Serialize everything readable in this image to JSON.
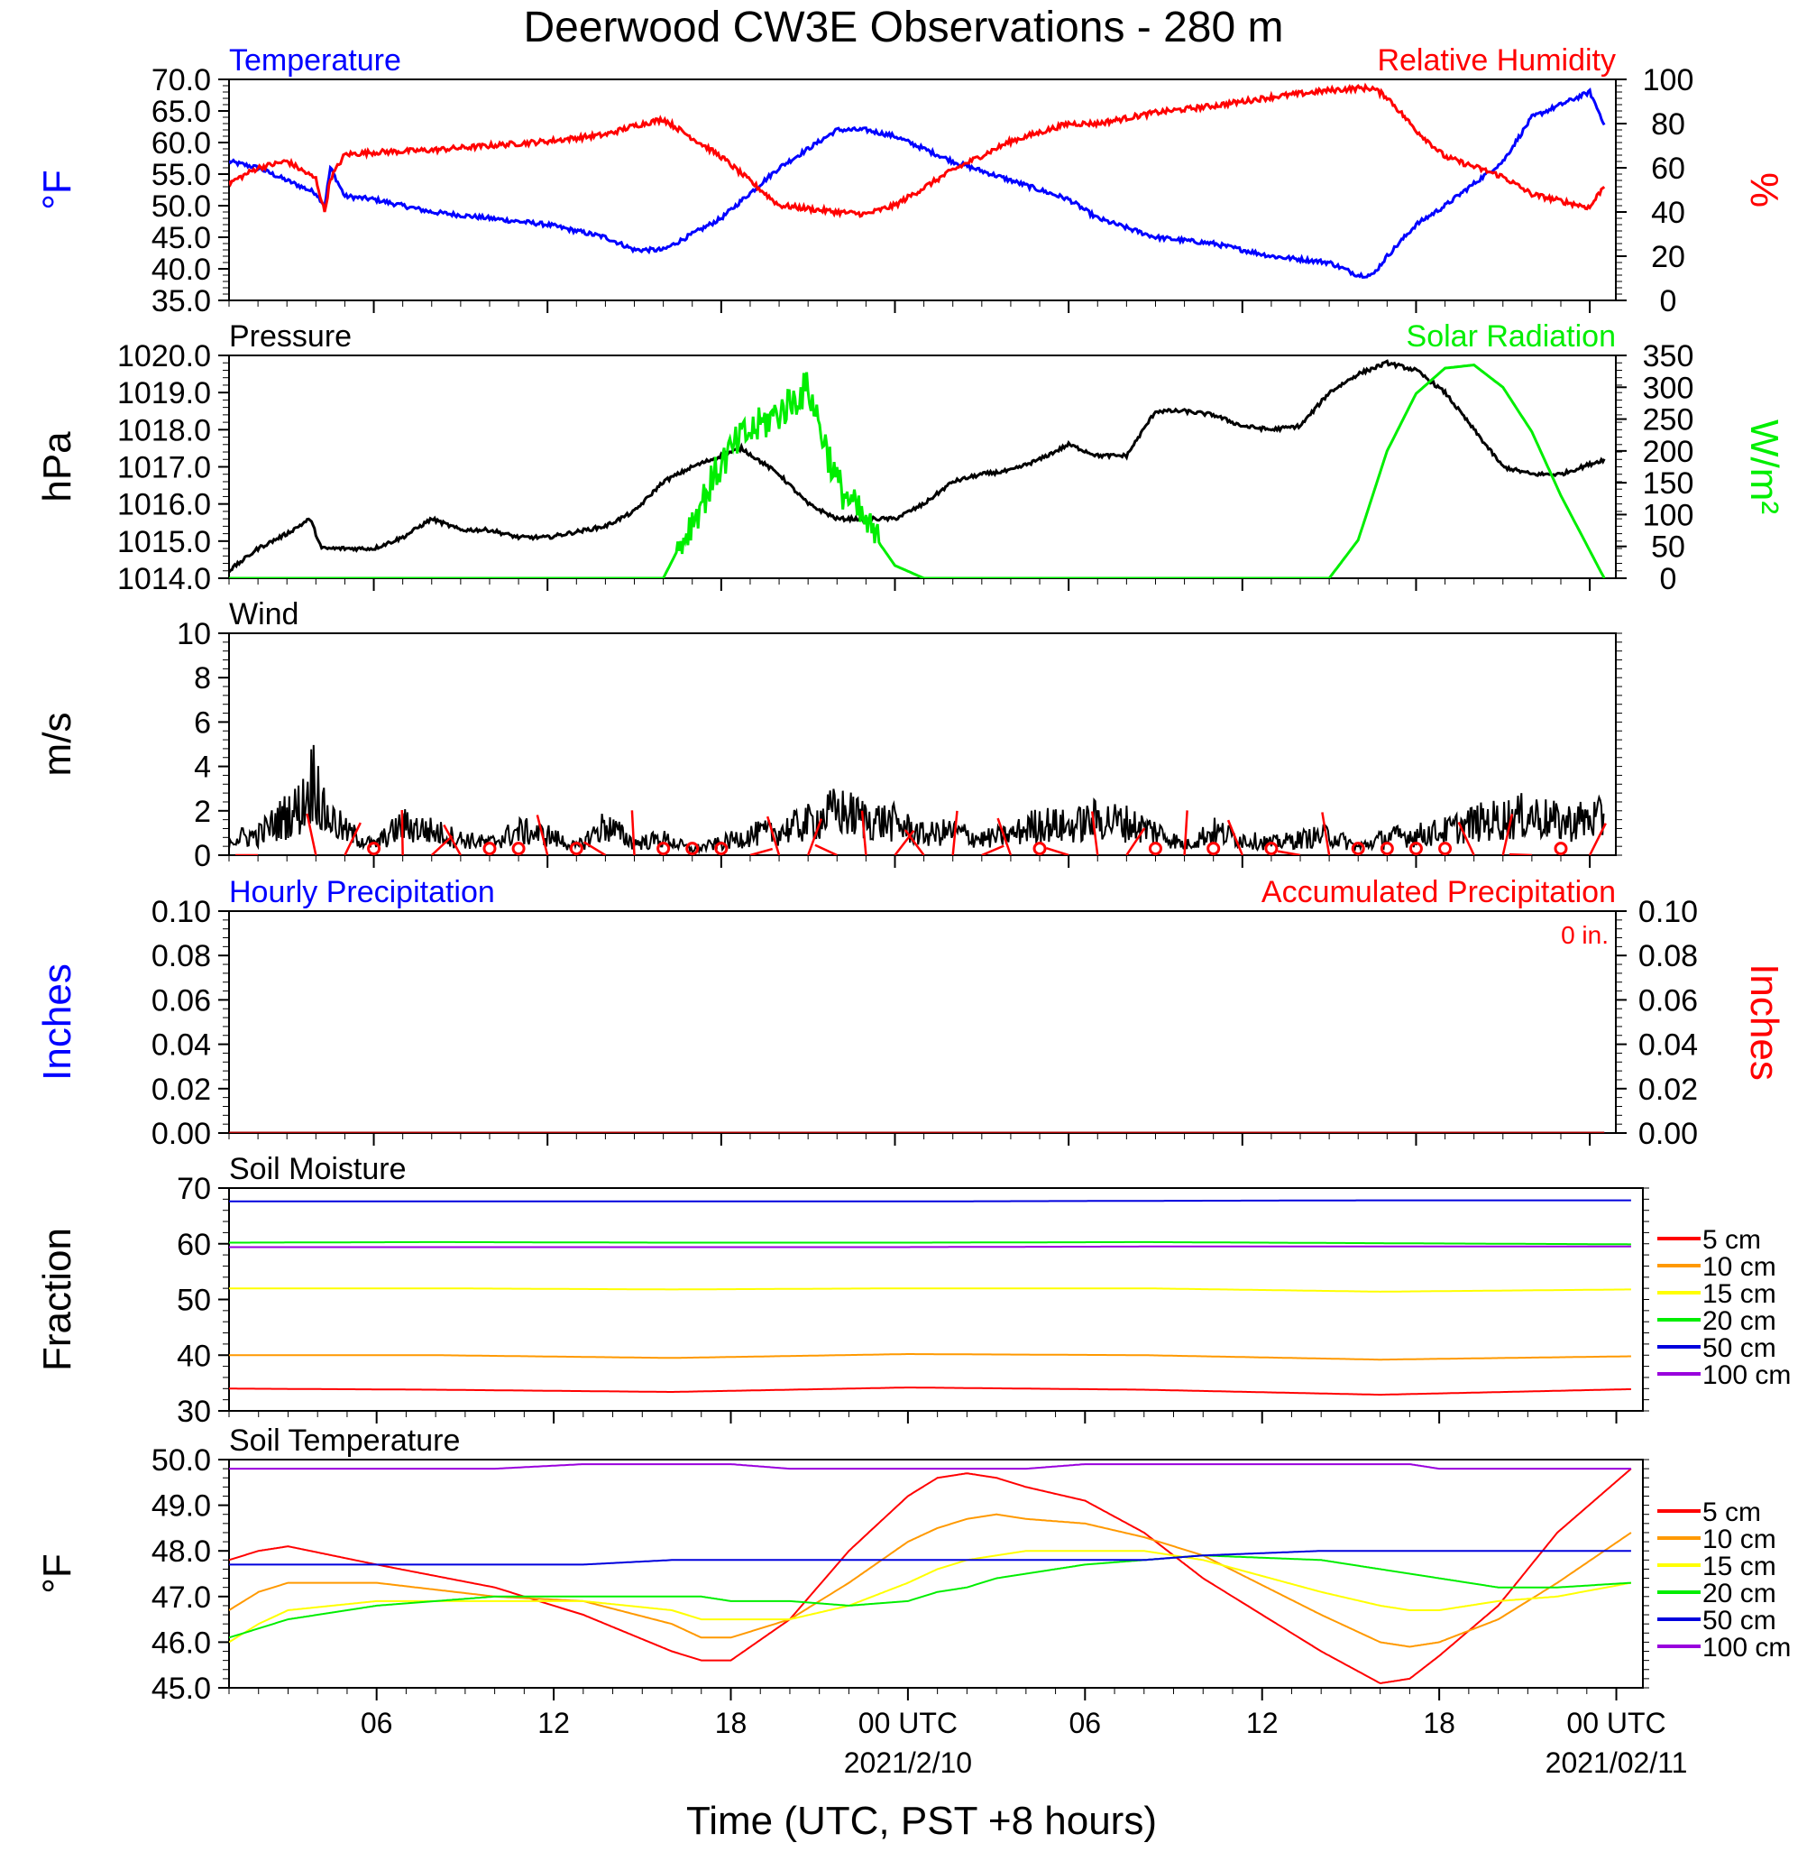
{
  "page": {
    "title": "Deerwood CW3E Observations - 280 m",
    "xlabel": "Time (UTC, PST +8 hours)",
    "x_ticks": [
      "06",
      "12",
      "18",
      "00 UTC",
      "06",
      "12",
      "18",
      "00 UTC"
    ],
    "date_labels": [
      "2021/2/10",
      "2021/02/11"
    ]
  },
  "colors": {
    "temperature": "#0000ff",
    "humidity": "#ff0000",
    "pressure": "#000000",
    "solar": "#00ee00",
    "wind": "#000000",
    "wind_barb": "#ff0000",
    "soil_5cm": "#ff0000",
    "soil_10cm": "#ff9900",
    "soil_15cm": "#ffff00",
    "soil_20cm": "#00ee00",
    "soil_50cm": "#0000dd",
    "soil_100cm": "#9900dd"
  },
  "chart_data": [
    {
      "id": "temp_rh",
      "type": "line",
      "title_left": "Temperature",
      "title_right": "Relative Humidity",
      "ylabel_left": "°F",
      "ylabel_right": "%",
      "ylim_left": [
        35,
        70
      ],
      "ylim_right": [
        0,
        100
      ],
      "yticks_left": [
        "35.0",
        "40.0",
        "45.0",
        "50.0",
        "55.0",
        "60.0",
        "65.0",
        "70.0"
      ],
      "yticks_right": [
        "0",
        "20",
        "40",
        "60",
        "80",
        "100"
      ],
      "x_hours": [
        1,
        2,
        3,
        4,
        4.3,
        4.5,
        5,
        6,
        8,
        10,
        12,
        14,
        15,
        16,
        18,
        20,
        22,
        23,
        24,
        26,
        28,
        30,
        31,
        33,
        35,
        37,
        39,
        40,
        40.5,
        41,
        42,
        43,
        45,
        46,
        47,
        48,
        48.5
      ],
      "series": [
        {
          "name": "Temperature",
          "axis": "left",
          "values": [
            57,
            56,
            54,
            52,
            50,
            56,
            51.5,
            51,
            49,
            48,
            47,
            45,
            43,
            43,
            48,
            56,
            62,
            62,
            61,
            57,
            54,
            51,
            48,
            45,
            44,
            42,
            41,
            39,
            39,
            42,
            47,
            50,
            57,
            64,
            66,
            68,
            63
          ]
        },
        {
          "name": "Relative Humidity",
          "axis": "right",
          "values": [
            53,
            60,
            63,
            55,
            40,
            55,
            66,
            67,
            68,
            70,
            72,
            75,
            79,
            82,
            65,
            43,
            40,
            39,
            43,
            59,
            72,
            80,
            80,
            85,
            88,
            92,
            95,
            96,
            96,
            92,
            77,
            65,
            56,
            48,
            45,
            42,
            52
          ]
        }
      ]
    },
    {
      "id": "pressure_solar",
      "type": "line",
      "title_left": "Pressure",
      "title_right": "Solar Radiation",
      "ylabel_left": "hPa",
      "ylabel_right": "W/m²",
      "ylim_left": [
        1014,
        1020
      ],
      "ylim_right": [
        0,
        350
      ],
      "yticks_left": [
        "1014.0",
        "1015.0",
        "1016.0",
        "1017.0",
        "1018.0",
        "1019.0",
        "1020.0"
      ],
      "yticks_right": [
        "0",
        "50",
        "100",
        "150",
        "200",
        "250",
        "300",
        "350"
      ],
      "x_hours": [
        1,
        2,
        3,
        3.8,
        4.2,
        5,
        6,
        7,
        8,
        9,
        10,
        11,
        12,
        14,
        15,
        16,
        17,
        18,
        18.7,
        20,
        21,
        22,
        24,
        25,
        26,
        27,
        28,
        29,
        30,
        31,
        32,
        33,
        34,
        35,
        36,
        37,
        38,
        39,
        40,
        41,
        42,
        43,
        44,
        45,
        46,
        47,
        48.5
      ],
      "series": [
        {
          "name": "Pressure",
          "axis": "left",
          "values": [
            1014.2,
            1014.8,
            1015.2,
            1015.6,
            1014.8,
            1014.8,
            1014.8,
            1015.1,
            1015.6,
            1015.3,
            1015.3,
            1015.1,
            1015.1,
            1015.4,
            1015.8,
            1016.6,
            1017.0,
            1017.3,
            1017.5,
            1016.8,
            1016.0,
            1015.6,
            1015.6,
            1016.0,
            1016.6,
            1016.8,
            1016.9,
            1017.2,
            1017.6,
            1017.3,
            1017.3,
            1018.5,
            1018.5,
            1018.4,
            1018.1,
            1018.0,
            1018.1,
            1019.0,
            1019.5,
            1019.8,
            1019.6,
            1019.0,
            1018.0,
            1017.0,
            1016.8,
            1016.8,
            1017.2
          ]
        },
        {
          "name": "Solar Radiation",
          "axis": "right",
          "values": [
            0,
            0,
            0,
            0,
            0,
            0,
            0,
            0,
            0,
            0,
            0,
            0,
            0,
            0,
            0,
            0,
            90,
            180,
            220,
            260,
            300,
            150,
            20,
            0,
            0,
            0,
            0,
            0,
            0,
            0,
            0,
            0,
            0,
            0,
            0,
            0,
            0,
            0,
            60,
            200,
            290,
            330,
            335,
            300,
            230,
            130,
            0
          ]
        }
      ]
    },
    {
      "id": "wind",
      "type": "line",
      "title_left": "Wind",
      "ylabel_left": "m/s",
      "ylim_left": [
        0,
        10
      ],
      "yticks_left": [
        "0",
        "2",
        "4",
        "6",
        "8",
        "10"
      ],
      "x_hours": [
        1,
        2,
        3,
        3.5,
        4,
        4.2,
        5,
        6,
        7,
        8,
        9,
        10,
        11,
        12,
        13,
        14,
        15,
        16,
        17,
        18,
        19,
        20,
        21,
        22,
        23,
        24,
        25,
        26,
        27,
        28,
        29,
        30,
        31,
        32,
        33,
        34,
        35,
        36,
        37,
        38,
        39,
        40,
        41,
        42,
        43,
        44,
        45,
        46,
        47,
        48,
        48.5
      ],
      "series": [
        {
          "name": "Wind speed",
          "axis": "left",
          "values": [
            0.8,
            1.0,
            2.0,
            2.4,
            4.1,
            2.2,
            1.2,
            0.5,
            1.5,
            1.2,
            0.8,
            0.6,
            1.2,
            1.0,
            0.4,
            1.5,
            0.6,
            0.8,
            0.3,
            0.6,
            1.0,
            1.2,
            1.6,
            2.2,
            1.8,
            1.6,
            1.0,
            1.2,
            0.8,
            1.0,
            1.6,
            1.4,
            1.8,
            1.6,
            1.2,
            0.5,
            1.2,
            0.8,
            0.6,
            0.8,
            1.0,
            0.4,
            0.9,
            1.0,
            1.2,
            1.6,
            1.8,
            2.0,
            1.6,
            1.8,
            1.8
          ]
        }
      ],
      "barb_hours": [
        2,
        4,
        5,
        6,
        7,
        8,
        9,
        10,
        11,
        12,
        13,
        14,
        15,
        16,
        17,
        18,
        19,
        20,
        21,
        22,
        23,
        24,
        25,
        26,
        27,
        28,
        29,
        30,
        31,
        32,
        33,
        34,
        35,
        36,
        37,
        38,
        39,
        40,
        41,
        42,
        43,
        44,
        45,
        46,
        47,
        48
      ],
      "calm_hours": [
        6,
        10,
        11,
        13,
        16,
        17,
        18,
        29,
        33,
        35,
        37,
        40,
        41,
        42,
        43,
        47
      ]
    },
    {
      "id": "precip",
      "type": "line",
      "title_left": "Hourly Precipitation",
      "title_right": "Accumulated Precipitation",
      "annotation": "0 in.",
      "ylabel_left": "Inches",
      "ylabel_right": "Inches",
      "ylim_left": [
        0,
        0.1
      ],
      "ylim_right": [
        0,
        0.1
      ],
      "yticks_left": [
        "0.00",
        "0.02",
        "0.04",
        "0.06",
        "0.08",
        "0.10"
      ],
      "yticks_right": [
        "0.00",
        "0.02",
        "0.04",
        "0.06",
        "0.08",
        "0.10"
      ],
      "x_hours": [
        1,
        48.5
      ],
      "series": [
        {
          "name": "Hourly Precipitation",
          "axis": "left",
          "values": [
            0,
            0
          ]
        },
        {
          "name": "Accumulated Precipitation",
          "axis": "right",
          "values": [
            0,
            0
          ]
        }
      ]
    },
    {
      "id": "soil_moisture",
      "type": "line",
      "title_left": "Soil Moisture",
      "ylabel_left": "Fraction",
      "ylim_left": [
        30,
        70
      ],
      "yticks_left": [
        "30",
        "40",
        "50",
        "60",
        "70"
      ],
      "x_hours": [
        1,
        8,
        16,
        24,
        32,
        40,
        48.5
      ],
      "series": [
        {
          "name": "5 cm",
          "values": [
            34.0,
            33.8,
            33.4,
            34.2,
            33.8,
            32.9,
            33.9
          ]
        },
        {
          "name": "10 cm",
          "values": [
            40.0,
            40.0,
            39.5,
            40.2,
            40.0,
            39.2,
            39.8
          ]
        },
        {
          "name": "15 cm",
          "values": [
            52.0,
            52.0,
            51.8,
            52.0,
            52.0,
            51.4,
            51.8
          ]
        },
        {
          "name": "20 cm",
          "values": [
            60.2,
            60.3,
            60.2,
            60.2,
            60.3,
            60.1,
            59.9
          ]
        },
        {
          "name": "50 cm",
          "values": [
            67.6,
            67.6,
            67.6,
            67.6,
            67.7,
            67.8,
            67.8
          ]
        },
        {
          "name": "100 cm",
          "values": [
            59.4,
            59.4,
            59.4,
            59.4,
            59.5,
            59.5,
            59.5
          ]
        }
      ],
      "legend": [
        "5 cm",
        "10 cm",
        "15 cm",
        "20 cm",
        "50 cm",
        "100 cm"
      ]
    },
    {
      "id": "soil_temp",
      "type": "line",
      "title_left": "Soil Temperature",
      "ylabel_left": "°F",
      "ylim_left": [
        45,
        50
      ],
      "yticks_left": [
        "45.0",
        "46.0",
        "47.0",
        "48.0",
        "49.0",
        "50.0"
      ],
      "x_hours": [
        1,
        2,
        3,
        6,
        10,
        13,
        16,
        17,
        18,
        20,
        22,
        24,
        25,
        26,
        27,
        28,
        30,
        32,
        34,
        38,
        40,
        41,
        42,
        44,
        46,
        48.5
      ],
      "series": [
        {
          "name": "5 cm",
          "values": [
            47.8,
            48.0,
            48.1,
            47.7,
            47.2,
            46.6,
            45.8,
            45.6,
            45.6,
            46.5,
            48.0,
            49.2,
            49.6,
            49.7,
            49.6,
            49.4,
            49.1,
            48.4,
            47.4,
            45.8,
            45.1,
            45.2,
            45.7,
            46.8,
            48.4,
            49.8
          ]
        },
        {
          "name": "10 cm",
          "values": [
            46.7,
            47.1,
            47.3,
            47.3,
            47.0,
            46.9,
            46.4,
            46.1,
            46.1,
            46.5,
            47.3,
            48.2,
            48.5,
            48.7,
            48.8,
            48.7,
            48.6,
            48.3,
            47.9,
            46.6,
            46.0,
            45.9,
            46.0,
            46.5,
            47.3,
            48.4
          ]
        },
        {
          "name": "15 cm",
          "values": [
            46.0,
            46.4,
            46.7,
            46.9,
            46.9,
            46.9,
            46.7,
            46.5,
            46.5,
            46.5,
            46.8,
            47.3,
            47.6,
            47.8,
            47.9,
            48.0,
            48.0,
            48.0,
            47.8,
            47.1,
            46.8,
            46.7,
            46.7,
            46.9,
            47.0,
            47.3
          ]
        },
        {
          "name": "20 cm",
          "values": [
            46.1,
            46.3,
            46.5,
            46.8,
            47.0,
            47.0,
            47.0,
            47.0,
            46.9,
            46.9,
            46.8,
            46.9,
            47.1,
            47.2,
            47.4,
            47.5,
            47.7,
            47.8,
            47.9,
            47.8,
            47.6,
            47.5,
            47.4,
            47.2,
            47.2,
            47.3
          ]
        },
        {
          "name": "50 cm",
          "values": [
            47.7,
            47.7,
            47.7,
            47.7,
            47.7,
            47.7,
            47.8,
            47.8,
            47.8,
            47.8,
            47.8,
            47.8,
            47.8,
            47.8,
            47.8,
            47.8,
            47.8,
            47.8,
            47.9,
            48.0,
            48.0,
            48.0,
            48.0,
            48.0,
            48.0,
            48.0
          ]
        },
        {
          "name": "100 cm",
          "values": [
            49.8,
            49.8,
            49.8,
            49.8,
            49.8,
            49.9,
            49.9,
            49.9,
            49.9,
            49.8,
            49.8,
            49.8,
            49.8,
            49.8,
            49.8,
            49.8,
            49.9,
            49.9,
            49.9,
            49.9,
            49.9,
            49.9,
            49.8,
            49.8,
            49.8,
            49.8
          ]
        }
      ],
      "legend": [
        "5 cm",
        "10 cm",
        "15 cm",
        "20 cm",
        "50 cm",
        "100 cm"
      ]
    }
  ]
}
